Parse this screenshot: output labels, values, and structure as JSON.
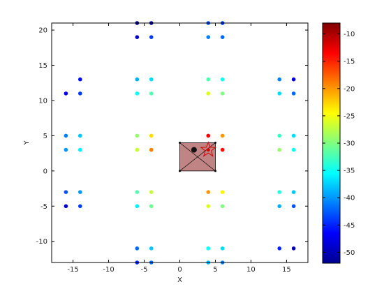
{
  "chart_data": {
    "type": "scatter",
    "title": "",
    "xlabel": "X",
    "ylabel": "Y",
    "xlim": [
      -18,
      18
    ],
    "ylim": [
      -13,
      21
    ],
    "xticks": [
      -15,
      -10,
      -5,
      0,
      5,
      10,
      15
    ],
    "yticks": [
      -10,
      -5,
      0,
      5,
      10,
      15,
      20
    ],
    "grid": false,
    "colormap": "jet",
    "clim": [
      -52,
      -8
    ],
    "colorbar_ticks": [
      -10,
      -15,
      -20,
      -25,
      -30,
      -35,
      -40,
      -45,
      -50
    ],
    "points": [
      {
        "x": -6,
        "y": 21,
        "v": -51
      },
      {
        "x": -4,
        "y": 21,
        "v": -50
      },
      {
        "x": 4,
        "y": 21,
        "v": -43
      },
      {
        "x": 6,
        "y": 21,
        "v": -44
      },
      {
        "x": -6,
        "y": 19,
        "v": -49
      },
      {
        "x": -4,
        "y": 19,
        "v": -44
      },
      {
        "x": 4,
        "y": 19,
        "v": -41
      },
      {
        "x": 6,
        "y": 19,
        "v": -42
      },
      {
        "x": -14,
        "y": 13,
        "v": -46
      },
      {
        "x": -6,
        "y": 13,
        "v": -39
      },
      {
        "x": -4,
        "y": 13,
        "v": -37
      },
      {
        "x": 4,
        "y": 13,
        "v": -32
      },
      {
        "x": 6,
        "y": 13,
        "v": -35
      },
      {
        "x": 14,
        "y": 13,
        "v": -41
      },
      {
        "x": 16,
        "y": 13,
        "v": -48
      },
      {
        "x": -16,
        "y": 11,
        "v": -47
      },
      {
        "x": -14,
        "y": 11,
        "v": -44
      },
      {
        "x": -6,
        "y": 11,
        "v": -35
      },
      {
        "x": -4,
        "y": 11,
        "v": -32
      },
      {
        "x": 4,
        "y": 11,
        "v": -26
      },
      {
        "x": 6,
        "y": 11,
        "v": -30
      },
      {
        "x": 14,
        "y": 11,
        "v": -37
      },
      {
        "x": 16,
        "y": 11,
        "v": -42
      },
      {
        "x": -16,
        "y": 5,
        "v": -41
      },
      {
        "x": -14,
        "y": 5,
        "v": -38
      },
      {
        "x": -6,
        "y": 5,
        "v": -29
      },
      {
        "x": -4,
        "y": 5,
        "v": -23
      },
      {
        "x": 4,
        "y": 5,
        "v": -13
      },
      {
        "x": 6,
        "y": 5,
        "v": -20
      },
      {
        "x": 14,
        "y": 5,
        "v": -33
      },
      {
        "x": 16,
        "y": 5,
        "v": -37
      },
      {
        "x": -16,
        "y": 3,
        "v": -40
      },
      {
        "x": -14,
        "y": 3,
        "v": -36
      },
      {
        "x": -6,
        "y": 3,
        "v": -27
      },
      {
        "x": -4,
        "y": 3,
        "v": -19
      },
      {
        "x": 2,
        "y": 3,
        "v": -8
      },
      {
        "x": 4,
        "y": 3,
        "v": -10
      },
      {
        "x": 6,
        "y": 3,
        "v": -14
      },
      {
        "x": 14,
        "y": 3,
        "v": -29
      },
      {
        "x": 16,
        "y": 3,
        "v": -35
      },
      {
        "x": -16,
        "y": -3,
        "v": -43
      },
      {
        "x": -14,
        "y": -3,
        "v": -40
      },
      {
        "x": -6,
        "y": -3,
        "v": -32
      },
      {
        "x": -4,
        "y": -3,
        "v": -27
      },
      {
        "x": 4,
        "y": -3,
        "v": -20
      },
      {
        "x": 6,
        "y": -3,
        "v": -24
      },
      {
        "x": 14,
        "y": -3,
        "v": -34
      },
      {
        "x": 16,
        "y": -3,
        "v": -38
      },
      {
        "x": -16,
        "y": -5,
        "v": -48
      },
      {
        "x": -14,
        "y": -5,
        "v": -44
      },
      {
        "x": -6,
        "y": -5,
        "v": -36
      },
      {
        "x": -4,
        "y": -5,
        "v": -31
      },
      {
        "x": 4,
        "y": -5,
        "v": -26
      },
      {
        "x": 6,
        "y": -5,
        "v": -30
      },
      {
        "x": 14,
        "y": -5,
        "v": -39
      },
      {
        "x": 16,
        "y": -5,
        "v": -43
      },
      {
        "x": -6,
        "y": -11,
        "v": -42
      },
      {
        "x": -4,
        "y": -11,
        "v": -38
      },
      {
        "x": 4,
        "y": -11,
        "v": -35
      },
      {
        "x": 6,
        "y": -11,
        "v": -37
      },
      {
        "x": 14,
        "y": -11,
        "v": -45
      },
      {
        "x": 16,
        "y": -11,
        "v": -50
      },
      {
        "x": -6,
        "y": -13,
        "v": -45
      },
      {
        "x": -4,
        "y": -13,
        "v": -42
      },
      {
        "x": 4,
        "y": -13,
        "v": -39
      },
      {
        "x": 6,
        "y": -13,
        "v": -41
      }
    ],
    "overlay": {
      "rectangle": {
        "x0": 0,
        "y0": 0,
        "x1": 5,
        "y1": 4,
        "fill": "#c08484"
      },
      "black_point": {
        "x": 2,
        "y": 3
      },
      "star": {
        "x": 4,
        "y": 3,
        "color": "#d40000"
      }
    }
  }
}
